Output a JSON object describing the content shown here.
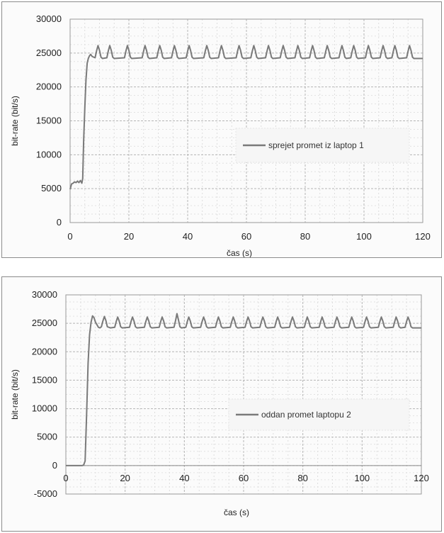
{
  "chart_data": [
    {
      "type": "line",
      "title": "",
      "xlabel": "čas (s)",
      "ylabel": "bit-rate (bit/s)",
      "xlim": [
        0,
        120
      ],
      "ylim": [
        0,
        30000
      ],
      "xticks": [
        "0",
        "20",
        "40",
        "60",
        "80",
        "100",
        "120"
      ],
      "yticks": [
        "0",
        "5000",
        "10000",
        "15000",
        "20000",
        "25000",
        "30000"
      ],
      "grid": true,
      "legend_position": "middle-right",
      "color": "#7a7a7a",
      "series": [
        {
          "name": "sprejet promet iz laptop 1",
          "x": [
            0,
            0.5,
            1,
            1.5,
            2,
            2.5,
            3,
            3.5,
            4,
            4.3,
            4.6,
            5,
            5.4,
            5.8,
            6.2,
            6.6,
            7,
            7.5,
            8.5,
            9,
            9.5,
            10,
            10.5,
            11,
            12.5,
            13,
            13.5,
            14,
            14.5,
            15,
            18.5,
            19,
            19.5,
            20,
            20.5,
            21,
            24.5,
            25,
            25.5,
            26,
            26.5,
            27,
            29.5,
            30,
            30.5,
            31,
            31.5,
            32,
            34.5,
            35,
            35.5,
            36,
            36.5,
            37,
            39.5,
            40,
            40.5,
            41,
            41.5,
            42,
            45.5,
            46,
            46.5,
            47,
            47.5,
            48,
            50.5,
            51,
            51.5,
            52,
            52.5,
            53,
            56.5,
            57,
            57.5,
            58,
            58.5,
            59,
            61.5,
            62,
            62.5,
            63,
            63.5,
            64,
            66.5,
            67,
            67.5,
            68,
            68.5,
            69,
            71.5,
            72,
            72.5,
            73,
            73.5,
            74,
            76.5,
            77,
            77.5,
            78,
            78.5,
            79,
            81.5,
            82,
            82.5,
            83,
            83.5,
            84,
            86.5,
            87,
            87.5,
            88,
            88.5,
            89,
            91.5,
            92,
            92.5,
            93,
            93.5,
            94,
            95.5,
            96,
            96.5,
            97,
            97.5,
            98,
            100.5,
            101,
            101.5,
            102,
            102.5,
            103,
            105.5,
            106,
            106.5,
            107,
            107.5,
            108,
            109.5,
            110,
            110.5,
            111,
            111.5,
            112,
            114.5,
            115,
            115.5,
            116,
            116.5,
            117,
            120
          ],
          "y": [
            4900,
            5700,
            5800,
            6000,
            5900,
            6100,
            5900,
            6200,
            5800,
            6500,
            12000,
            17000,
            21000,
            23500,
            24200,
            24600,
            24800,
            24500,
            24300,
            25300,
            26100,
            25400,
            24400,
            24200,
            24300,
            25300,
            26100,
            25400,
            24400,
            24200,
            24300,
            25300,
            26100,
            25400,
            24400,
            24200,
            24300,
            25300,
            26100,
            25400,
            24400,
            24200,
            24300,
            25300,
            26100,
            25400,
            24400,
            24200,
            24300,
            25300,
            26100,
            25400,
            24400,
            24200,
            24300,
            25300,
            26100,
            25400,
            24400,
            24200,
            24300,
            25300,
            26100,
            25400,
            24400,
            24200,
            24300,
            25300,
            26100,
            25400,
            24400,
            24200,
            24300,
            25300,
            26100,
            25400,
            24400,
            24200,
            24300,
            25300,
            26100,
            25400,
            24400,
            24200,
            24300,
            25300,
            26100,
            25400,
            24400,
            24200,
            24300,
            25300,
            26100,
            25400,
            24400,
            24200,
            24300,
            25300,
            26100,
            25400,
            24400,
            24200,
            24300,
            25300,
            26100,
            25400,
            24400,
            24200,
            24300,
            25300,
            26100,
            25400,
            24400,
            24200,
            24300,
            25300,
            26100,
            25400,
            24400,
            24200,
            24300,
            25300,
            26100,
            25400,
            24400,
            24200,
            24300,
            25300,
            26100,
            25400,
            24400,
            24200,
            24300,
            25300,
            26100,
            25400,
            24400,
            24200,
            24300,
            25300,
            26100,
            25400,
            24400,
            24200,
            24300,
            25300,
            26100,
            25400,
            24400,
            24200,
            24200
          ]
        }
      ]
    },
    {
      "type": "line",
      "title": "",
      "xlabel": "čas (s)",
      "ylabel": "bit-rate (bit/s)",
      "xlim": [
        0,
        120
      ],
      "ylim": [
        -5000,
        30000
      ],
      "xticks": [
        "0",
        "20",
        "40",
        "60",
        "80",
        "100",
        "120"
      ],
      "yticks": [
        "-5000",
        "0",
        "5000",
        "10000",
        "15000",
        "20000",
        "25000",
        "30000"
      ],
      "grid": true,
      "legend_position": "middle-right",
      "color": "#7a7a7a",
      "series": [
        {
          "name": "oddan promet laptopu 2",
          "x": [
            0,
            5.5,
            6,
            6.5,
            7,
            7.5,
            8,
            8.5,
            9,
            9.5,
            10,
            11,
            11.5,
            12,
            12.5,
            13,
            13.5,
            14,
            15,
            16.5,
            17,
            17.5,
            18,
            18.5,
            19,
            21.5,
            22,
            22.5,
            23,
            23.5,
            24,
            26.5,
            27,
            27.5,
            28,
            28.5,
            29,
            31.5,
            32,
            32.5,
            33,
            33.5,
            34,
            36.5,
            37,
            37.5,
            38,
            38.5,
            39,
            40.5,
            41,
            41.5,
            42,
            42.5,
            43,
            45.5,
            46,
            46.5,
            47,
            47.5,
            48,
            50.5,
            51,
            51.5,
            52,
            52.5,
            53,
            55.5,
            56,
            56.5,
            57,
            57.5,
            58,
            60.5,
            61,
            61.5,
            62,
            62.5,
            63,
            65.5,
            66,
            66.5,
            67,
            67.5,
            68,
            70.5,
            71,
            71.5,
            72,
            72.5,
            73,
            75.5,
            76,
            76.5,
            77,
            77.5,
            78,
            80.5,
            81,
            81.5,
            82,
            82.5,
            83,
            85.5,
            86,
            86.5,
            87,
            87.5,
            88,
            90.5,
            91,
            91.5,
            92,
            92.5,
            93,
            95.5,
            96,
            96.5,
            97,
            97.5,
            98,
            100.5,
            101,
            101.5,
            102,
            102.5,
            103,
            105.5,
            106,
            106.5,
            107,
            107.5,
            108,
            110.5,
            111,
            111.5,
            112,
            112.5,
            113,
            114.5,
            115,
            115.5,
            116,
            116.5,
            117,
            120
          ],
          "y": [
            0,
            0,
            100,
            800,
            9000,
            18000,
            23000,
            25200,
            26300,
            26000,
            25200,
            24300,
            24200,
            24400,
            25400,
            26200,
            25500,
            24400,
            24200,
            24300,
            25300,
            26100,
            25400,
            24400,
            24200,
            24300,
            25300,
            26100,
            25400,
            24400,
            24200,
            24300,
            25300,
            26100,
            25400,
            24400,
            24200,
            24300,
            25300,
            26100,
            25400,
            24400,
            24200,
            24300,
            25400,
            26700,
            25600,
            24400,
            24200,
            24300,
            25300,
            26100,
            25400,
            24400,
            24200,
            24300,
            25300,
            26100,
            25400,
            24400,
            24200,
            24300,
            25300,
            26100,
            25400,
            24400,
            24200,
            24300,
            25300,
            26100,
            25400,
            24400,
            24200,
            24300,
            25300,
            26100,
            25400,
            24400,
            24200,
            24300,
            25300,
            26100,
            25400,
            24400,
            24200,
            24300,
            25300,
            26100,
            25400,
            24400,
            24200,
            24300,
            25300,
            26100,
            25400,
            24400,
            24200,
            24300,
            25300,
            26100,
            25400,
            24400,
            24200,
            24300,
            25300,
            26100,
            25400,
            24400,
            24200,
            24300,
            25300,
            26100,
            25400,
            24400,
            24200,
            24300,
            25300,
            26100,
            25400,
            24400,
            24200,
            24300,
            25300,
            26100,
            25400,
            24400,
            24200,
            24300,
            25300,
            26100,
            25400,
            24400,
            24200,
            24300,
            25300,
            26100,
            25400,
            24400,
            24200,
            24300,
            25300,
            26100,
            25400,
            24400,
            24200,
            24200
          ]
        }
      ]
    }
  ]
}
